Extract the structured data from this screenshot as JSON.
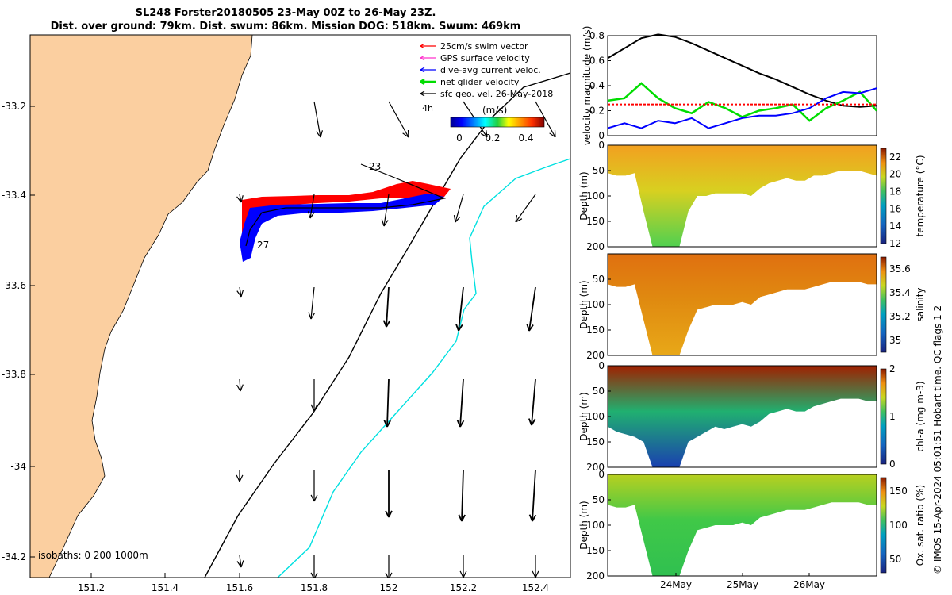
{
  "header": {
    "title_line1": "SL248 Forster20180505 23-May 00Z to 26-May 23Z.",
    "title_line2": "Dist. over ground: 79km. Dist. swum: 86km. Mission DOG: 518km. Swum: 469km"
  },
  "side_note": "© IMOS 15-Apr-2024 05:01:51 Hobart time. QC flags 1  2",
  "colors": {
    "land": "#fbcfa0",
    "swim_vector": "#ff0000",
    "gps_velocity": "#ff33cc",
    "dive_avg": "#0000ff",
    "net_glider": "#00dd00",
    "sfc_geo": "#000000",
    "isobath_200": "#000000",
    "isobath_1000": "#00e0e0"
  },
  "map": {
    "legend": [
      {
        "label": "25cm/s swim vector",
        "key": "swim_vector"
      },
      {
        "label": "GPS surface velocity",
        "key": "gps_velocity"
      },
      {
        "label": "dive-avg current veloc.",
        "key": "dive_avg"
      },
      {
        "label": "net glider velocity",
        "key": "net_glider"
      },
      {
        "label": "sfc geo. vel. 26-May-2018",
        "key": "sfc_geo"
      }
    ],
    "interval_label": "4h",
    "colorbar_label": "(m/s)",
    "colorbar_ticks": [
      "0",
      "0.2",
      "0.4"
    ],
    "track_labels": [
      "23",
      "27"
    ],
    "isobaths_label": "isobaths: 0   200  1000m",
    "x_ticks": [
      "151.2",
      "151.4",
      "151.6",
      "151.8",
      "152",
      "152.2",
      "152.4"
    ],
    "y_ticks": [
      "-33.2",
      "-33.4",
      "-33.6",
      "-33.8",
      "-34",
      "-34.2"
    ]
  },
  "chart_data": [
    {
      "type": "line",
      "title": "",
      "ylabel": "velocity magnitude (m/s)",
      "ylim": [
        0,
        0.8
      ],
      "y_ticks": [
        "0",
        "0.2",
        "0.4",
        "0.6",
        "0.8"
      ],
      "x": [
        0,
        0.25,
        0.5,
        0.75,
        1,
        1.25,
        1.5,
        1.75,
        2,
        2.25,
        2.5,
        2.75,
        3,
        3.25,
        3.5,
        3.75,
        4
      ],
      "series": [
        {
          "name": "sfc geo. vel.",
          "color": "#000000",
          "values": [
            0.62,
            0.7,
            0.78,
            0.81,
            0.79,
            0.74,
            0.68,
            0.62,
            0.56,
            0.5,
            0.45,
            0.39,
            0.33,
            0.28,
            0.24,
            0.23,
            0.24
          ]
        },
        {
          "name": "net glider velocity",
          "color": "#00dd00",
          "values": [
            0.28,
            0.3,
            0.42,
            0.3,
            0.22,
            0.18,
            0.27,
            0.22,
            0.15,
            0.2,
            0.22,
            0.25,
            0.12,
            0.22,
            0.28,
            0.35,
            0.2
          ]
        },
        {
          "name": "dive-avg current veloc.",
          "color": "#0000ff",
          "values": [
            0.06,
            0.1,
            0.06,
            0.12,
            0.1,
            0.14,
            0.06,
            0.1,
            0.14,
            0.16,
            0.16,
            0.18,
            0.22,
            0.3,
            0.35,
            0.34,
            0.38
          ]
        },
        {
          "name": "25cm/s swim vector",
          "color": "#ff0000",
          "values": [
            0.25,
            0.25,
            0.25,
            0.25,
            0.25,
            0.25,
            0.25,
            0.25,
            0.25,
            0.25,
            0.25,
            0.25,
            0.25,
            0.25,
            0.25,
            0.25,
            0.25
          ]
        }
      ]
    },
    {
      "type": "heatmap",
      "ylabel": "Depth (m)",
      "ylim": [
        200,
        0
      ],
      "y_ticks": [
        "0",
        "50",
        "100",
        "150",
        "200"
      ],
      "colorbar_label": "temperature (°C)",
      "colorbar_ticks": [
        "12",
        "14",
        "16",
        "18",
        "20",
        "22"
      ],
      "depth_profile": [
        55,
        60,
        60,
        55,
        130,
        200,
        200,
        200,
        200,
        130,
        100,
        100,
        95,
        95,
        95,
        95,
        100,
        85,
        75,
        70,
        65,
        70,
        70,
        60,
        60,
        55,
        50,
        50,
        50,
        55,
        60
      ],
      "summary": "warm (about 21–22 °C) above 100 m, cooling to about 17 °C below 150 m"
    },
    {
      "type": "heatmap",
      "ylabel": "Depth (m)",
      "ylim": [
        200,
        0
      ],
      "y_ticks": [
        "50",
        "100",
        "150",
        "200"
      ],
      "colorbar_label": "salinity",
      "colorbar_ticks": [
        "35",
        "35.2",
        "35.4",
        "35.6"
      ],
      "depth_profile": [
        60,
        65,
        65,
        60,
        130,
        200,
        200,
        200,
        200,
        150,
        110,
        105,
        100,
        100,
        100,
        95,
        100,
        85,
        80,
        75,
        70,
        70,
        70,
        65,
        60,
        55,
        55,
        55,
        55,
        60,
        60
      ],
      "summary": "high salinity (about 35.6) near the surface, about 35.5 at depth"
    },
    {
      "type": "heatmap",
      "ylabel": "Depth (m)",
      "ylim": [
        200,
        0
      ],
      "y_ticks": [
        "0",
        "50",
        "100",
        "150",
        "200"
      ],
      "colorbar_label": "chl-a (mg m-3)",
      "colorbar_ticks": [
        "0",
        "1",
        "2"
      ],
      "depth_profile": [
        120,
        130,
        135,
        140,
        150,
        200,
        200,
        200,
        200,
        150,
        140,
        130,
        120,
        125,
        120,
        115,
        120,
        110,
        95,
        90,
        85,
        90,
        90,
        80,
        75,
        70,
        65,
        65,
        65,
        70,
        70
      ],
      "summary": "high chlorophyll (near 2) in the top 30 m, low below 60 m"
    },
    {
      "type": "heatmap",
      "ylabel": "Depth (m)",
      "ylim": [
        200,
        0
      ],
      "y_ticks": [
        "0",
        "50",
        "100",
        "150",
        "200"
      ],
      "colorbar_label": "Ox. sat. ratio (%)",
      "colorbar_ticks": [
        "50",
        "100",
        "150"
      ],
      "x_ticks": [
        "24May",
        "25May",
        "26May"
      ],
      "depth_profile": [
        60,
        65,
        65,
        60,
        130,
        200,
        200,
        200,
        200,
        150,
        110,
        105,
        100,
        100,
        100,
        95,
        100,
        85,
        80,
        75,
        70,
        70,
        70,
        65,
        60,
        55,
        55,
        55,
        55,
        60,
        60
      ],
      "summary": "oxygen saturation about 100–110 % through the water column, higher near the surface"
    }
  ]
}
